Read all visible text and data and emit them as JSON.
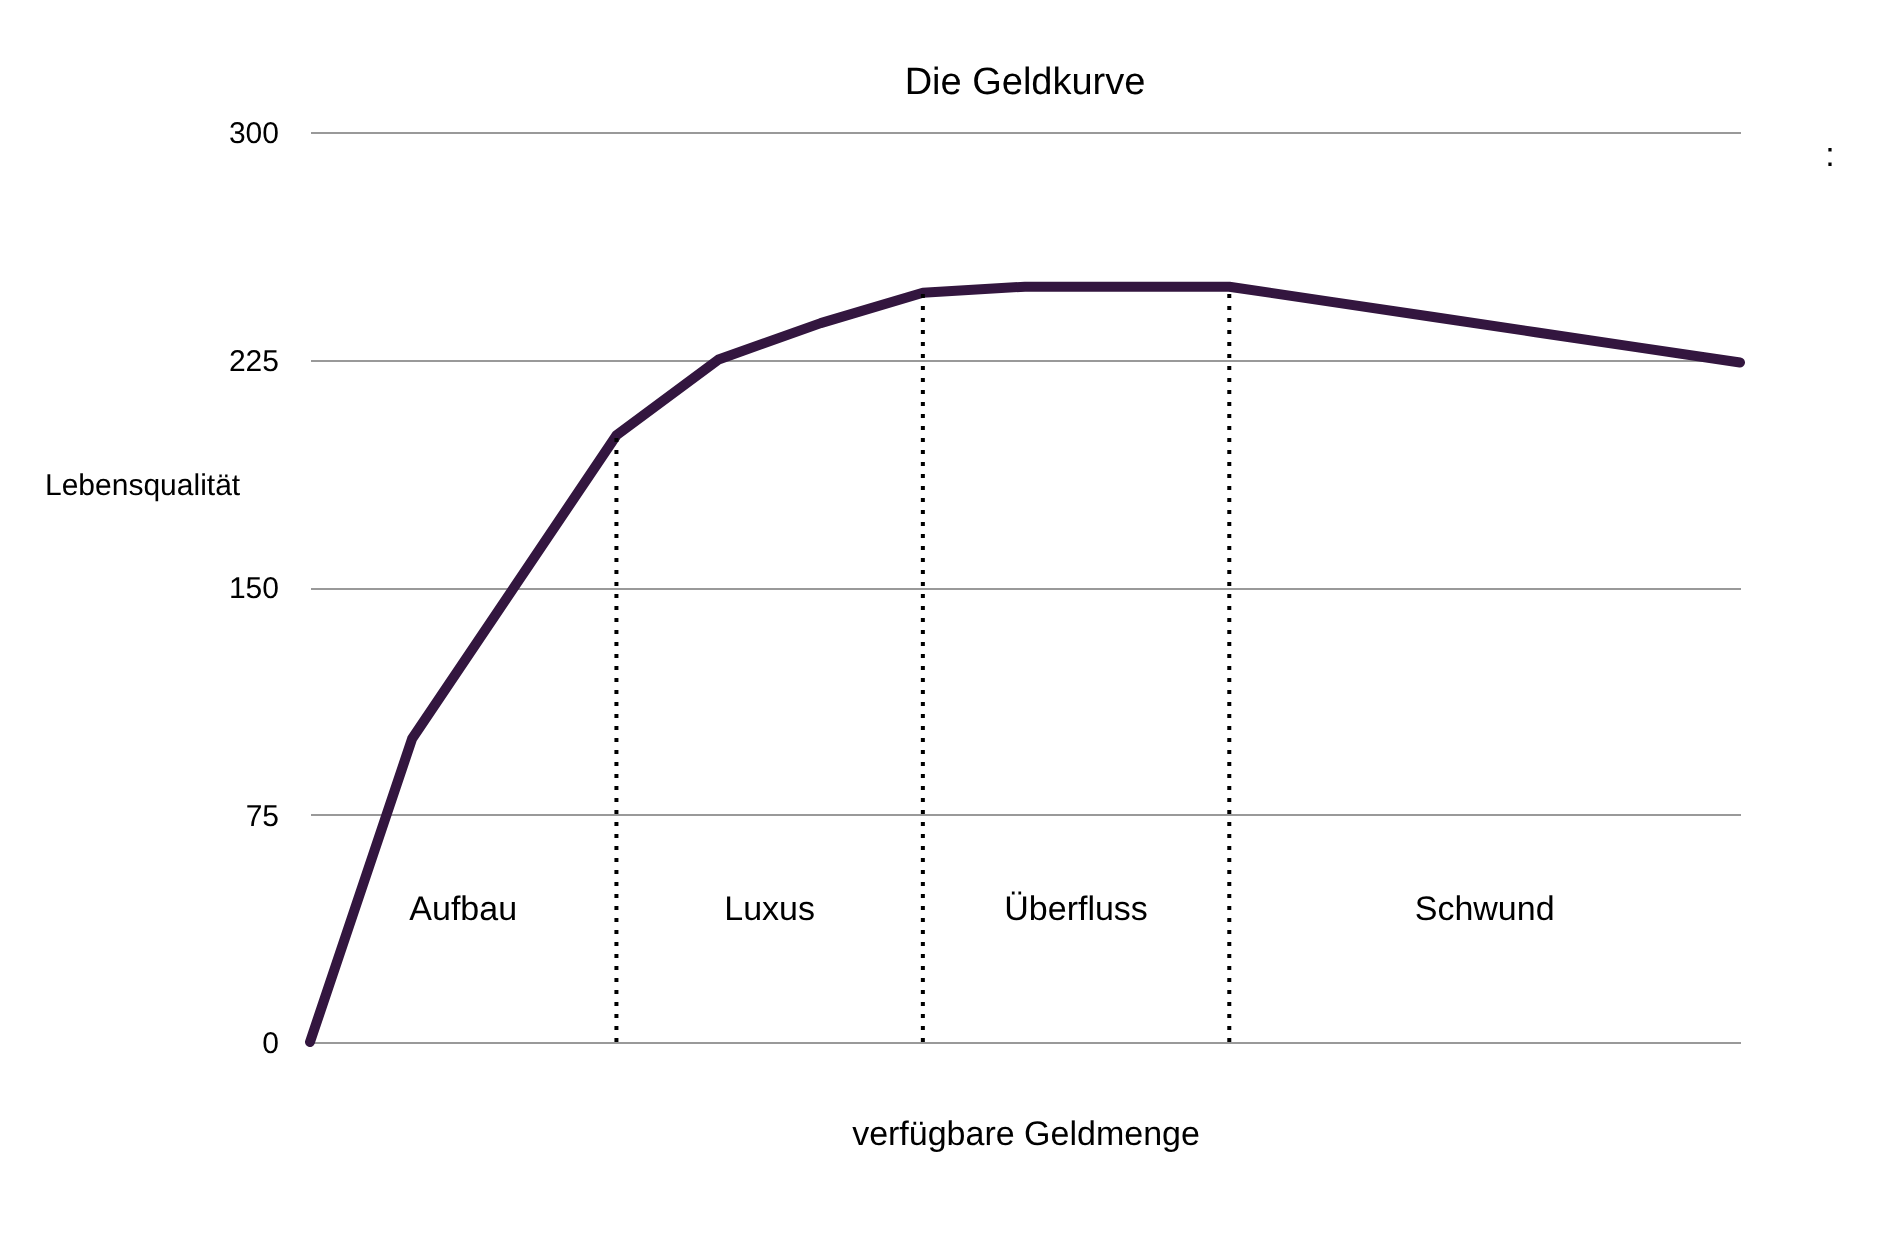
{
  "chart_data": {
    "type": "line",
    "title": "Die Geldkurve",
    "xlabel": "verfügbare Geldmenge",
    "ylabel": "Lebensqualität",
    "categories": [
      null,
      null,
      null,
      null,
      null,
      null,
      null,
      null,
      null,
      null,
      null,
      null,
      null,
      null,
      null
    ],
    "series": [
      {
        "color": "#33163f",
        "values": [
          0,
          100,
          150,
          200,
          225,
          237,
          247,
          249,
          249,
          249,
          244,
          239,
          234,
          229,
          224
        ]
      }
    ],
    "ylim": [
      0,
      300
    ],
    "yticks": [
      0,
      75,
      150,
      225,
      300
    ],
    "grid": "y",
    "tick_labels": "y",
    "marker": "none",
    "line_style": "solid",
    "annotations": [
      "Aufbau",
      "Luxus",
      "Überfluss",
      "Schwund",
      ":"
    ]
  }
}
